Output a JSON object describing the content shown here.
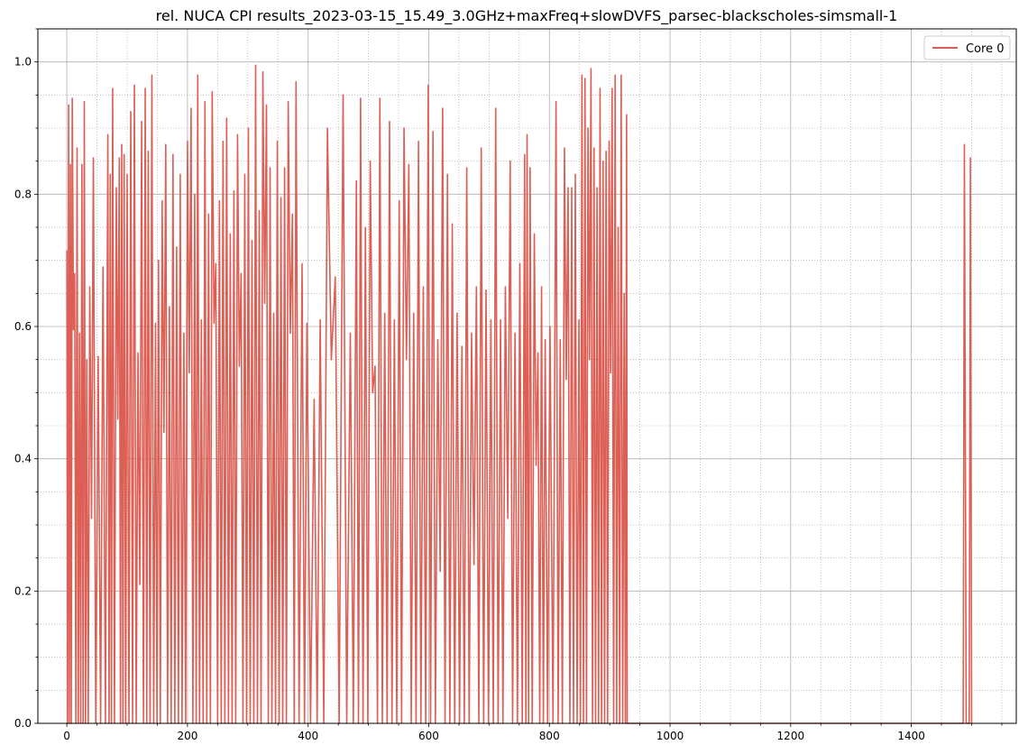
{
  "chart_data": {
    "type": "line",
    "title": "rel. NUCA CPI results_2023-03-15_15.49_3.0GHz+maxFreq+slowDVFS_parsec-blackscholes-simsmall-1",
    "xlabel": "",
    "ylabel": "",
    "xlim": [
      -48,
      1574
    ],
    "ylim": [
      0,
      1.05
    ],
    "x_ticks": [
      0,
      200,
      400,
      600,
      800,
      1000,
      1200,
      1400
    ],
    "y_ticks": [
      0.0,
      0.2,
      0.4,
      0.6,
      0.8,
      1.0
    ],
    "y_tick_labels": [
      "0.0",
      "0.2",
      "0.4",
      "0.6",
      "0.8",
      "1.0"
    ],
    "x_minor_step": 50,
    "y_minor_step": 0.05,
    "grid": "major solid, minor dotted",
    "legend_position": "top-right",
    "series": [
      {
        "name": "Core 0",
        "color": "#dc5f55",
        "active_range": [
          0,
          930
        ],
        "late_burst": [
          {
            "x": 1486,
            "y": 0.0
          },
          {
            "x": 1488,
            "y": 0.875
          },
          {
            "x": 1491,
            "y": 0.0
          },
          {
            "x": 1496,
            "y": 0.0
          },
          {
            "x": 1498,
            "y": 0.855
          },
          {
            "x": 1500,
            "y": 0.0
          }
        ],
        "peaks": [
          {
            "x": 0,
            "y": 0.715
          },
          {
            "x": 3,
            "y": 0.935
          },
          {
            "x": 6,
            "y": 0.845
          },
          {
            "x": 9,
            "y": 0.945
          },
          {
            "x": 13,
            "y": 0.68
          },
          {
            "x": 17,
            "y": 0.87
          },
          {
            "x": 21,
            "y": 0.59
          },
          {
            "x": 25,
            "y": 0.845
          },
          {
            "x": 29,
            "y": 0.94
          },
          {
            "x": 33,
            "y": 0.55
          },
          {
            "x": 38,
            "y": 0.66
          },
          {
            "x": 44,
            "y": 0.855
          },
          {
            "x": 52,
            "y": 0.555
          },
          {
            "x": 60,
            "y": 0.69
          },
          {
            "x": 68,
            "y": 0.89
          },
          {
            "x": 72,
            "y": 0.83
          },
          {
            "x": 76,
            "y": 0.96
          },
          {
            "x": 82,
            "y": 0.81
          },
          {
            "x": 87,
            "y": 0.855
          },
          {
            "x": 91,
            "y": 0.875
          },
          {
            "x": 95,
            "y": 0.86
          },
          {
            "x": 100,
            "y": 0.83
          },
          {
            "x": 106,
            "y": 0.925
          },
          {
            "x": 112,
            "y": 0.965
          },
          {
            "x": 118,
            "y": 0.56
          },
          {
            "x": 124,
            "y": 0.91
          },
          {
            "x": 130,
            "y": 0.96
          },
          {
            "x": 135,
            "y": 0.865
          },
          {
            "x": 141,
            "y": 0.98
          },
          {
            "x": 147,
            "y": 0.605
          },
          {
            "x": 152,
            "y": 0.7
          },
          {
            "x": 158,
            "y": 0.79
          },
          {
            "x": 164,
            "y": 0.875
          },
          {
            "x": 170,
            "y": 0.63
          },
          {
            "x": 176,
            "y": 0.86
          },
          {
            "x": 182,
            "y": 0.72
          },
          {
            "x": 188,
            "y": 0.83
          },
          {
            "x": 194,
            "y": 0.59
          },
          {
            "x": 200,
            "y": 0.88
          },
          {
            "x": 206,
            "y": 0.93
          },
          {
            "x": 212,
            "y": 0.8
          },
          {
            "x": 217,
            "y": 0.98
          },
          {
            "x": 223,
            "y": 0.61
          },
          {
            "x": 229,
            "y": 0.94
          },
          {
            "x": 235,
            "y": 0.77
          },
          {
            "x": 241,
            "y": 0.955
          },
          {
            "x": 247,
            "y": 0.695
          },
          {
            "x": 253,
            "y": 0.79
          },
          {
            "x": 259,
            "y": 0.88
          },
          {
            "x": 265,
            "y": 0.915
          },
          {
            "x": 271,
            "y": 0.74
          },
          {
            "x": 277,
            "y": 0.805
          },
          {
            "x": 283,
            "y": 0.89
          },
          {
            "x": 289,
            "y": 0.68
          },
          {
            "x": 295,
            "y": 0.83
          },
          {
            "x": 301,
            "y": 0.9
          },
          {
            "x": 307,
            "y": 0.73
          },
          {
            "x": 313,
            "y": 0.995
          },
          {
            "x": 319,
            "y": 0.775
          },
          {
            "x": 325,
            "y": 0.985
          },
          {
            "x": 331,
            "y": 0.935
          },
          {
            "x": 337,
            "y": 0.84
          },
          {
            "x": 343,
            "y": 0.62
          },
          {
            "x": 349,
            "y": 0.88
          },
          {
            "x": 355,
            "y": 0.795
          },
          {
            "x": 361,
            "y": 0.84
          },
          {
            "x": 367,
            "y": 0.94
          },
          {
            "x": 374,
            "y": 0.77
          },
          {
            "x": 380,
            "y": 0.97
          },
          {
            "x": 390,
            "y": 0.695
          },
          {
            "x": 398,
            "y": 0.605
          },
          {
            "x": 410,
            "y": 0.49
          },
          {
            "x": 420,
            "y": 0.61
          },
          {
            "x": 432,
            "y": 0.9
          },
          {
            "x": 445,
            "y": 0.675
          },
          {
            "x": 458,
            "y": 0.95
          },
          {
            "x": 470,
            "y": 0.59
          },
          {
            "x": 480,
            "y": 0.82
          },
          {
            "x": 487,
            "y": 0.945
          },
          {
            "x": 495,
            "y": 0.75
          },
          {
            "x": 503,
            "y": 0.85
          },
          {
            "x": 511,
            "y": 0.54
          },
          {
            "x": 519,
            "y": 0.945
          },
          {
            "x": 527,
            "y": 0.62
          },
          {
            "x": 535,
            "y": 0.91
          },
          {
            "x": 543,
            "y": 0.61
          },
          {
            "x": 551,
            "y": 0.79
          },
          {
            "x": 559,
            "y": 0.9
          },
          {
            "x": 567,
            "y": 0.845
          },
          {
            "x": 575,
            "y": 0.62
          },
          {
            "x": 583,
            "y": 0.88
          },
          {
            "x": 591,
            "y": 0.66
          },
          {
            "x": 599,
            "y": 0.965
          },
          {
            "x": 607,
            "y": 0.895
          },
          {
            "x": 615,
            "y": 0.58
          },
          {
            "x": 623,
            "y": 0.93
          },
          {
            "x": 631,
            "y": 0.83
          },
          {
            "x": 639,
            "y": 0.755
          },
          {
            "x": 647,
            "y": 0.62
          },
          {
            "x": 655,
            "y": 0.57
          },
          {
            "x": 663,
            "y": 0.84
          },
          {
            "x": 671,
            "y": 0.59
          },
          {
            "x": 679,
            "y": 0.66
          },
          {
            "x": 687,
            "y": 0.87
          },
          {
            "x": 695,
            "y": 0.655
          },
          {
            "x": 703,
            "y": 0.61
          },
          {
            "x": 711,
            "y": 0.93
          },
          {
            "x": 719,
            "y": 0.61
          },
          {
            "x": 727,
            "y": 0.66
          },
          {
            "x": 735,
            "y": 0.85
          },
          {
            "x": 743,
            "y": 0.59
          },
          {
            "x": 751,
            "y": 0.695
          },
          {
            "x": 759,
            "y": 0.86
          },
          {
            "x": 763,
            "y": 0.89
          },
          {
            "x": 768,
            "y": 0.84
          },
          {
            "x": 775,
            "y": 0.74
          },
          {
            "x": 781,
            "y": 0.56
          },
          {
            "x": 787,
            "y": 0.66
          },
          {
            "x": 793,
            "y": 0.58
          },
          {
            "x": 801,
            "y": 0.6
          },
          {
            "x": 811,
            "y": 0.94
          },
          {
            "x": 818,
            "y": 0.58
          },
          {
            "x": 825,
            "y": 0.87
          },
          {
            "x": 831,
            "y": 0.81
          },
          {
            "x": 837,
            "y": 0.81
          },
          {
            "x": 843,
            "y": 0.83
          },
          {
            "x": 849,
            "y": 0.61
          },
          {
            "x": 854,
            "y": 0.98
          },
          {
            "x": 859,
            "y": 0.975
          },
          {
            "x": 864,
            "y": 0.9
          },
          {
            "x": 869,
            "y": 0.99
          },
          {
            "x": 874,
            "y": 0.87
          },
          {
            "x": 879,
            "y": 0.81
          },
          {
            "x": 884,
            "y": 0.96
          },
          {
            "x": 889,
            "y": 0.85
          },
          {
            "x": 894,
            "y": 0.865
          },
          {
            "x": 899,
            "y": 0.88
          },
          {
            "x": 904,
            "y": 0.96
          },
          {
            "x": 909,
            "y": 0.98
          },
          {
            "x": 914,
            "y": 0.75
          },
          {
            "x": 919,
            "y": 0.98
          },
          {
            "x": 924,
            "y": 0.65
          },
          {
            "x": 928,
            "y": 0.92
          }
        ]
      }
    ]
  }
}
